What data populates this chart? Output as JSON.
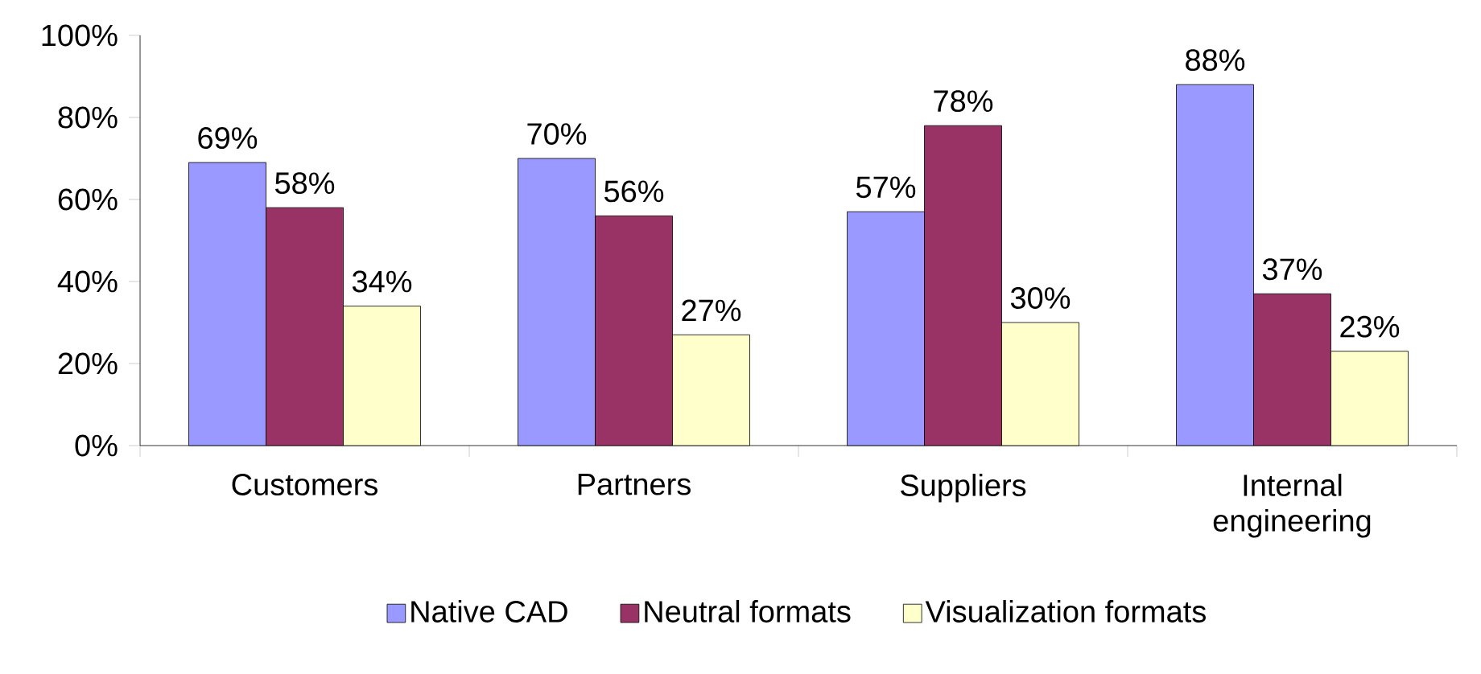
{
  "chart_data": {
    "type": "bar",
    "categories": [
      "Customers",
      "Partners",
      "Suppliers",
      "Internal engineering"
    ],
    "series": [
      {
        "name": "Native CAD",
        "color": "#9999ff",
        "values": [
          69,
          70,
          57,
          88
        ],
        "value_labels": [
          "69%",
          "70%",
          "57%",
          "88%"
        ]
      },
      {
        "name": "Neutral formats",
        "color": "#993366",
        "values": [
          58,
          56,
          78,
          37
        ],
        "value_labels": [
          "58%",
          "56%",
          "78%",
          "37%"
        ]
      },
      {
        "name": "Visualization formats",
        "color": "#ffffcc",
        "values": [
          34,
          27,
          30,
          23
        ],
        "value_labels": [
          "34%",
          "27%",
          "30%",
          "23%"
        ]
      }
    ],
    "ylim": [
      0,
      100
    ],
    "yticks": [
      {
        "value": 0,
        "label": "0%"
      },
      {
        "value": 20,
        "label": "20%"
      },
      {
        "value": 40,
        "label": "40%"
      },
      {
        "value": 60,
        "label": "60%"
      },
      {
        "value": 80,
        "label": "80%"
      },
      {
        "value": 100,
        "label": "100%"
      }
    ],
    "grid": false,
    "legend": "bottom"
  }
}
